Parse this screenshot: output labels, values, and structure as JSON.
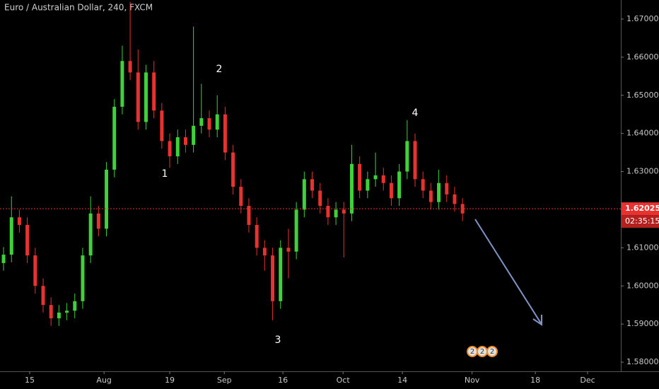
{
  "chart_data": {
    "type": "candlestick",
    "title": "Euro / Australian Dollar, 240, FXCM",
    "x": [
      0,
      1,
      2,
      3,
      4,
      5,
      6,
      7,
      8,
      9,
      10,
      11,
      12,
      13,
      14,
      15,
      16,
      17,
      18,
      19,
      20,
      21,
      22,
      23,
      24,
      25,
      26,
      27,
      28,
      29,
      30,
      31,
      32,
      33,
      34,
      35,
      36,
      37,
      38,
      39,
      40,
      41,
      42,
      43,
      44,
      45,
      46,
      47,
      48,
      49,
      50,
      51,
      52,
      53,
      54,
      55,
      56,
      57,
      58
    ],
    "open": [
      1.606,
      1.6082,
      1.618,
      1.616,
      1.608,
      1.6,
      1.595,
      1.5915,
      1.593,
      1.5935,
      1.596,
      1.608,
      1.619,
      1.615,
      1.6305,
      1.647,
      1.659,
      1.656,
      1.643,
      1.656,
      1.646,
      1.638,
      1.634,
      1.639,
      1.637,
      1.642,
      1.644,
      1.641,
      1.645,
      1.635,
      1.626,
      1.621,
      1.616,
      1.61,
      1.608,
      1.596,
      1.61,
      1.609,
      1.62,
      1.628,
      1.625,
      1.621,
      1.618,
      1.62,
      1.619,
      1.632,
      1.625,
      1.628,
      1.629,
      1.627,
      1.623,
      1.63,
      1.638,
      1.628,
      1.625,
      1.622,
      1.627,
      1.624,
      1.6215
    ],
    "high": [
      1.6102,
      1.6235,
      1.62,
      1.618,
      1.61,
      1.602,
      1.597,
      1.595,
      1.5955,
      1.598,
      1.61,
      1.6235,
      1.621,
      1.6325,
      1.649,
      1.663,
      1.6745,
      1.662,
      1.658,
      1.659,
      1.648,
      1.64,
      1.641,
      1.641,
      1.668,
      1.653,
      1.646,
      1.65,
      1.647,
      1.637,
      1.628,
      1.623,
      1.618,
      1.612,
      1.61,
      1.612,
      1.615,
      1.622,
      1.63,
      1.63,
      1.627,
      1.623,
      1.622,
      1.622,
      1.637,
      1.634,
      1.63,
      1.635,
      1.631,
      1.629,
      1.632,
      1.6435,
      1.64,
      1.63,
      1.627,
      1.6305,
      1.629,
      1.626,
      1.623
    ],
    "low": [
      1.604,
      1.6062,
      1.614,
      1.606,
      1.598,
      1.593,
      1.5895,
      1.5895,
      1.591,
      1.5915,
      1.594,
      1.606,
      1.613,
      1.613,
      1.6285,
      1.645,
      1.654,
      1.641,
      1.641,
      1.644,
      1.636,
      1.631,
      1.632,
      1.635,
      1.635,
      1.64,
      1.639,
      1.639,
      1.633,
      1.624,
      1.619,
      1.614,
      1.608,
      1.604,
      1.591,
      1.594,
      1.602,
      1.607,
      1.618,
      1.623,
      1.619,
      1.616,
      1.616,
      1.6075,
      1.617,
      1.623,
      1.623,
      1.626,
      1.625,
      1.621,
      1.621,
      1.628,
      1.626,
      1.623,
      1.62,
      1.62,
      1.622,
      1.6195,
      1.617
    ],
    "close": [
      1.6082,
      1.618,
      1.616,
      1.608,
      1.6,
      1.595,
      1.5915,
      1.593,
      1.5935,
      1.596,
      1.608,
      1.619,
      1.615,
      1.6305,
      1.647,
      1.659,
      1.656,
      1.643,
      1.656,
      1.646,
      1.638,
      1.634,
      1.639,
      1.637,
      1.642,
      1.644,
      1.641,
      1.645,
      1.635,
      1.626,
      1.621,
      1.616,
      1.61,
      1.608,
      1.596,
      1.61,
      1.609,
      1.62,
      1.628,
      1.625,
      1.621,
      1.618,
      1.62,
      1.619,
      1.632,
      1.625,
      1.628,
      1.629,
      1.627,
      1.623,
      1.63,
      1.638,
      1.628,
      1.625,
      1.622,
      1.627,
      1.624,
      1.6215,
      1.619
    ],
    "up_color": "#3fd13a",
    "down_color": "#e8322f",
    "xlim": [
      -0.45,
      78
    ],
    "xticks": [
      {
        "value": 3.3,
        "label": "15"
      },
      {
        "value": 12.7,
        "label": "Aug"
      },
      {
        "value": 21,
        "label": "19"
      },
      {
        "value": 27.9,
        "label": "Sep"
      },
      {
        "value": 35.3,
        "label": "16"
      },
      {
        "value": 42.9,
        "label": "Oct"
      },
      {
        "value": 50.4,
        "label": "14"
      },
      {
        "value": 59.2,
        "label": "Nov"
      },
      {
        "value": 67.2,
        "label": "18"
      },
      {
        "value": 73.8,
        "label": "Dec"
      }
    ],
    "ylim": [
      1.5776,
      1.675
    ],
    "yticks": [
      {
        "value": 1.58,
        "label": "1.58000"
      },
      {
        "value": 1.59,
        "label": "1.59000"
      },
      {
        "value": 1.6,
        "label": "1.60000"
      },
      {
        "value": 1.61,
        "label": "1.61000"
      },
      {
        "value": 1.62,
        "label": "1.62000"
      },
      {
        "value": 1.63,
        "label": "1.63000"
      },
      {
        "value": 1.64,
        "label": "1.64000"
      },
      {
        "value": 1.65,
        "label": "1.65000"
      },
      {
        "value": 1.66,
        "label": "1.66000"
      },
      {
        "value": 1.67,
        "label": "1.67000"
      }
    ],
    "price_line": 1.62025,
    "countdown": "02:35:15",
    "annotations": [
      "1",
      "2",
      "3",
      "4"
    ],
    "events": [
      "2",
      "2",
      "2"
    ]
  }
}
